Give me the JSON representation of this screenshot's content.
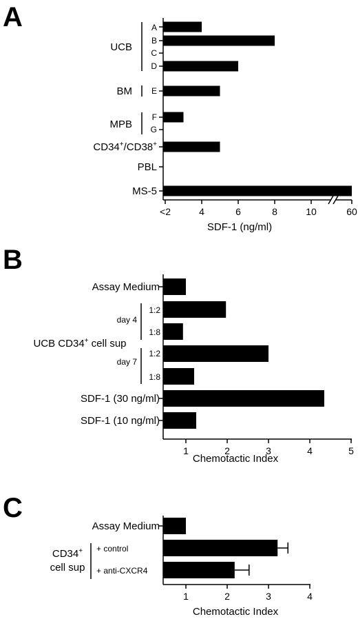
{
  "chart_data": [
    {
      "panel": "A",
      "type": "bar",
      "orientation": "horizontal",
      "xlabel": "SDF-1 (ng/ml)",
      "x_ticks": [
        "<2",
        "4",
        "6",
        "8",
        "10",
        "60"
      ],
      "axis_break": "between 10 and 60",
      "xlim": [
        2,
        60
      ],
      "groups": [
        {
          "label": "UCB",
          "rows": [
            {
              "label": "A",
              "value": 4
            },
            {
              "label": "B",
              "value": 8
            },
            {
              "label": "C",
              "value": null
            },
            {
              "label": "D",
              "value": 6
            }
          ]
        },
        {
          "label": "BM",
          "rows": [
            {
              "label": "E",
              "value": 5
            }
          ]
        },
        {
          "label": "MPB",
          "rows": [
            {
              "label": "F",
              "value": 3
            },
            {
              "label": "G",
              "value": null
            }
          ]
        },
        {
          "label": "CD34+/CD38+",
          "rows": [
            {
              "label": "",
              "value": 5
            }
          ]
        },
        {
          "label": "PBL",
          "rows": [
            {
              "label": "",
              "value": null
            }
          ]
        },
        {
          "label": "MS-5",
          "rows": [
            {
              "label": "",
              "value": 60
            }
          ]
        }
      ]
    },
    {
      "panel": "B",
      "type": "bar",
      "orientation": "horizontal",
      "xlabel": "Chemotactic Index",
      "x_ticks": [
        "1",
        "2",
        "3",
        "4",
        "5"
      ],
      "xlim": [
        0.5,
        5
      ],
      "group_label": "UCB CD34+ cell sup",
      "bars": [
        {
          "label": "Assay Medium",
          "value": 1.0
        },
        {
          "label": "1:2",
          "group": "day 4",
          "value": 1.97
        },
        {
          "label": "1:8",
          "group": "day 4",
          "value": 0.93
        },
        {
          "label": "1:2",
          "group": "day 7",
          "value": 3.0
        },
        {
          "label": "1:8",
          "group": "day 7",
          "value": 1.2
        },
        {
          "label": "SDF-1 (30 ng/ml)",
          "value": 4.35
        },
        {
          "label": "SDF-1 (10 ng/ml)",
          "value": 1.25
        }
      ]
    },
    {
      "panel": "C",
      "type": "bar",
      "orientation": "horizontal",
      "xlabel": "Chemotactic Index",
      "x_ticks": [
        "1",
        "2",
        "3",
        "4"
      ],
      "xlim": [
        0.5,
        4
      ],
      "group_label": "CD34+ cell sup",
      "bars": [
        {
          "label": "Assay Medium",
          "value": 1.0
        },
        {
          "label": "+ control",
          "value": 3.22,
          "error": 0.25
        },
        {
          "label": "+ anti-CXCR4",
          "value": 2.18,
          "error": 0.35
        }
      ]
    }
  ]
}
